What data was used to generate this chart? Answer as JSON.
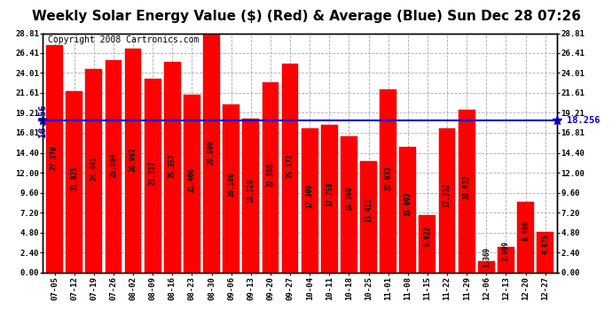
{
  "title": "Weekly Solar Energy Value ($) (Red) & Average (Blue) Sun Dec 28 07:26",
  "copyright": "Copyright 2008 Cartronics.com",
  "categories": [
    "07-05",
    "07-12",
    "07-19",
    "07-26",
    "08-02",
    "08-09",
    "08-16",
    "08-23",
    "08-30",
    "09-06",
    "09-13",
    "09-20",
    "09-27",
    "10-04",
    "10-11",
    "10-18",
    "10-25",
    "11-01",
    "11-08",
    "11-15",
    "11-22",
    "11-29",
    "12-06",
    "12-13",
    "12-20",
    "12-27"
  ],
  "values": [
    27.37,
    21.825,
    24.441,
    25.604,
    26.992,
    23.317,
    25.357,
    21.406,
    28.809,
    20.186,
    18.52,
    22.889,
    25.172,
    17.309,
    17.758,
    16.368,
    13.411,
    22.033,
    15.092,
    6.922,
    17.332,
    19.632,
    1.369,
    3.009,
    8.466,
    4.875
  ],
  "average": 18.256,
  "bar_color": "#ff0000",
  "avg_line_color": "#0000cc",
  "background_color": "#ffffff",
  "plot_bg_color": "#ffffff",
  "yticks": [
    0.0,
    2.4,
    4.8,
    7.2,
    9.6,
    12.0,
    14.4,
    16.81,
    19.21,
    21.61,
    24.01,
    26.41,
    28.81
  ],
  "ylim": [
    0,
    28.81
  ],
  "grid_color": "#aaaaaa",
  "border_color": "#000000",
  "avg_label": "18.256",
  "bar_label_color": "#000000",
  "title_fontsize": 11,
  "copyright_fontsize": 7,
  "tick_fontsize": 6.5,
  "bar_value_fontsize": 5.5,
  "avg_fontsize": 7.5
}
